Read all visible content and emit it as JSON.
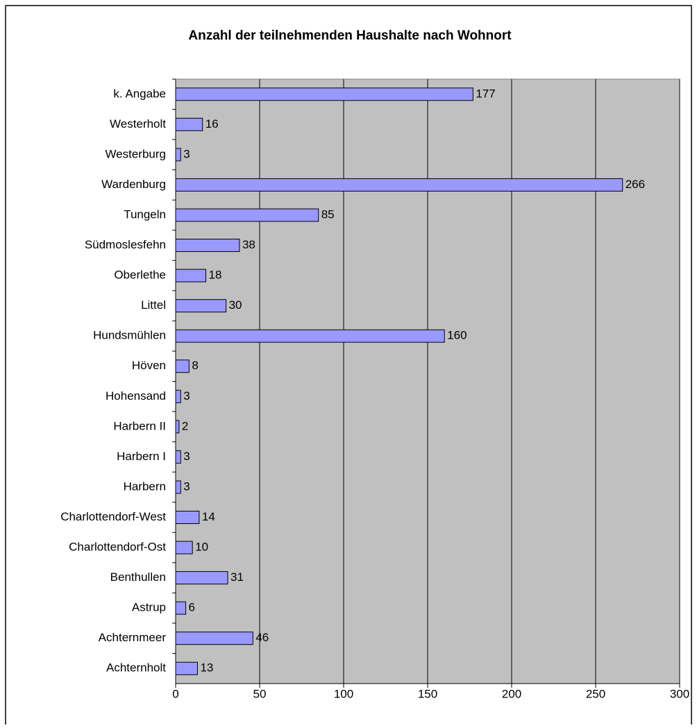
{
  "chart_data": {
    "type": "bar",
    "orientation": "horizontal",
    "title": "Anzahl der teilnehmenden Haushalte nach Wohnort",
    "categories": [
      "k. Angabe",
      "Westerholt",
      "Westerburg",
      "Wardenburg",
      "Tungeln",
      "Südmoslesfehn",
      "Oberlethe",
      "Littel",
      "Hundsmühlen",
      "Höven",
      "Hohensand",
      "Harbern II",
      "Harbern I",
      "Harbern",
      "Charlottendorf-West",
      "Charlottendorf-Ost",
      "Benthullen",
      "Astrup",
      "Achternmeer",
      "Achternholt"
    ],
    "values": [
      177,
      16,
      3,
      266,
      85,
      38,
      18,
      30,
      160,
      8,
      3,
      2,
      3,
      3,
      14,
      10,
      31,
      6,
      46,
      13
    ],
    "color": "#9999ff",
    "xlim": [
      0,
      300
    ],
    "xticks": [
      0,
      50,
      100,
      150,
      200,
      250,
      300
    ],
    "grid": true
  }
}
